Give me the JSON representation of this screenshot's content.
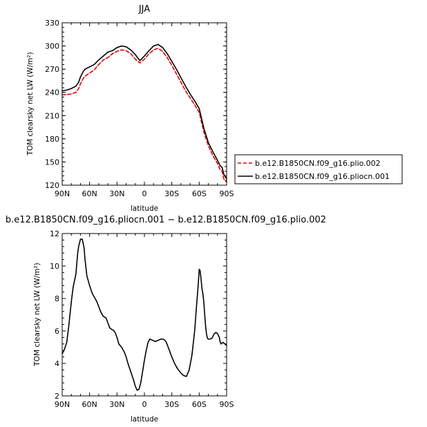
{
  "chart_data": [
    {
      "type": "line",
      "title": "JJA",
      "xlabel": "latitude",
      "ylabel": "TOM clearsky net LW (W/m²)",
      "xlim": [
        90,
        -90
      ],
      "ylim": [
        120,
        330
      ],
      "x_ticks": [
        90,
        60,
        30,
        0,
        -30,
        -60,
        -90
      ],
      "x_tick_labels": [
        "90N",
        "60N",
        "30N",
        "0",
        "30S",
        "60S",
        "90S"
      ],
      "y_ticks": [
        120,
        150,
        180,
        210,
        240,
        270,
        300,
        330
      ],
      "y_tick_labels": [
        "120",
        "150",
        "180",
        "210",
        "240",
        "270",
        "300",
        "330"
      ],
      "legend_position": "right",
      "series": [
        {
          "name": "b.e12.B1850CN.f09_g16.plio.002",
          "color": "#e00000",
          "dash": "dashed",
          "x": [
            90,
            85,
            80,
            75,
            72,
            70,
            67,
            65,
            60,
            55,
            50,
            45,
            40,
            35,
            30,
            25,
            20,
            15,
            10,
            5,
            0,
            -5,
            -10,
            -15,
            -20,
            -25,
            -30,
            -35,
            -40,
            -45,
            -50,
            -55,
            -60,
            -65,
            -70,
            -75,
            -80,
            -83,
            -85,
            -87,
            -90
          ],
          "y": [
            237,
            237,
            238,
            240,
            245,
            251,
            258,
            261,
            265,
            269,
            276,
            282,
            285,
            290,
            293,
            295,
            294,
            290,
            283,
            278,
            283,
            290,
            295,
            297,
            293,
            285,
            275,
            264,
            253,
            242,
            233,
            224,
            214,
            189,
            171,
            158,
            148,
            140,
            138,
            128,
            124
          ]
        },
        {
          "name": "b.e12.B1850CN.f09_g16.pliocn.001",
          "color": "#000000",
          "dash": "solid",
          "x": [
            90,
            85,
            80,
            75,
            72,
            70,
            67,
            65,
            60,
            55,
            50,
            45,
            40,
            35,
            30,
            25,
            20,
            15,
            10,
            5,
            0,
            -5,
            -10,
            -15,
            -20,
            -25,
            -30,
            -35,
            -40,
            -45,
            -50,
            -55,
            -60,
            -65,
            -70,
            -75,
            -80,
            -83,
            -85,
            -87,
            -90
          ],
          "y": [
            242,
            243,
            245,
            248,
            253,
            260,
            267,
            270,
            273,
            276,
            282,
            287,
            292,
            294,
            298,
            300,
            299,
            295,
            289,
            281,
            287,
            294,
            300,
            302,
            298,
            290,
            280,
            270,
            259,
            248,
            238,
            229,
            219,
            194,
            175,
            163,
            152,
            145,
            143,
            134,
            128
          ]
        }
      ]
    },
    {
      "type": "line",
      "title": "b.e12.B1850CN.f09_g16.pliocn.001 − b.e12.B1850CN.f09_g16.plio.002",
      "xlabel": "latitude",
      "ylabel": "TOM clearsky net LW (W/m²)",
      "xlim": [
        90,
        -90
      ],
      "ylim": [
        2,
        12
      ],
      "x_ticks": [
        90,
        60,
        30,
        0,
        -30,
        -60,
        -90
      ],
      "x_tick_labels": [
        "90N",
        "60N",
        "30N",
        "0",
        "30S",
        "60S",
        "90S"
      ],
      "y_ticks": [
        2,
        4,
        6,
        8,
        10,
        12
      ],
      "y_tick_labels": [
        "2",
        "4",
        "6",
        "8",
        "10",
        "12"
      ],
      "series": [
        {
          "name": "",
          "color": "#000000",
          "dash": "solid",
          "x": [
            90,
            88,
            85,
            83,
            80,
            78,
            75,
            73,
            72,
            70,
            68,
            66,
            65,
            63,
            60,
            57,
            55,
            52,
            50,
            48,
            45,
            42,
            40,
            38,
            36,
            34,
            32,
            30,
            28,
            25,
            22,
            20,
            18,
            15,
            12,
            10,
            8,
            6,
            4,
            2,
            0,
            -2,
            -4,
            -6,
            -8,
            -10,
            -12,
            -14,
            -16,
            -18,
            -20,
            -22,
            -24,
            -26,
            -28,
            -30,
            -33,
            -36,
            -40,
            -43,
            -46,
            -49,
            -52,
            -55,
            -57,
            -59,
            -60,
            -61,
            -62,
            -63,
            -64,
            -65,
            -66,
            -67,
            -68,
            -69,
            -70,
            -71,
            -72,
            -74,
            -76,
            -78,
            -80,
            -82,
            -83,
            -84,
            -85,
            -86,
            -88,
            -90
          ],
          "y": [
            4.6,
            4.8,
            5.3,
            6.2,
            7.8,
            8.7,
            9.5,
            10.8,
            11.2,
            11.65,
            11.65,
            11.1,
            10.4,
            9.4,
            8.8,
            8.3,
            8.1,
            7.8,
            7.5,
            7.2,
            6.9,
            6.8,
            6.5,
            6.2,
            6.1,
            6.05,
            5.9,
            5.6,
            5.2,
            5.0,
            4.7,
            4.4,
            4.0,
            3.5,
            3.0,
            2.6,
            2.35,
            2.4,
            2.8,
            3.5,
            4.2,
            4.8,
            5.3,
            5.5,
            5.45,
            5.4,
            5.35,
            5.4,
            5.45,
            5.5,
            5.5,
            5.45,
            5.3,
            5.0,
            4.7,
            4.4,
            4.0,
            3.7,
            3.4,
            3.25,
            3.2,
            3.6,
            4.5,
            6.0,
            7.5,
            8.9,
            9.8,
            9.7,
            9.2,
            8.6,
            8.3,
            7.8,
            7.0,
            6.3,
            5.8,
            5.55,
            5.5,
            5.5,
            5.5,
            5.55,
            5.8,
            5.9,
            5.85,
            5.6,
            5.3,
            5.2,
            5.25,
            5.3,
            5.2,
            5.1
          ]
        }
      ]
    }
  ]
}
